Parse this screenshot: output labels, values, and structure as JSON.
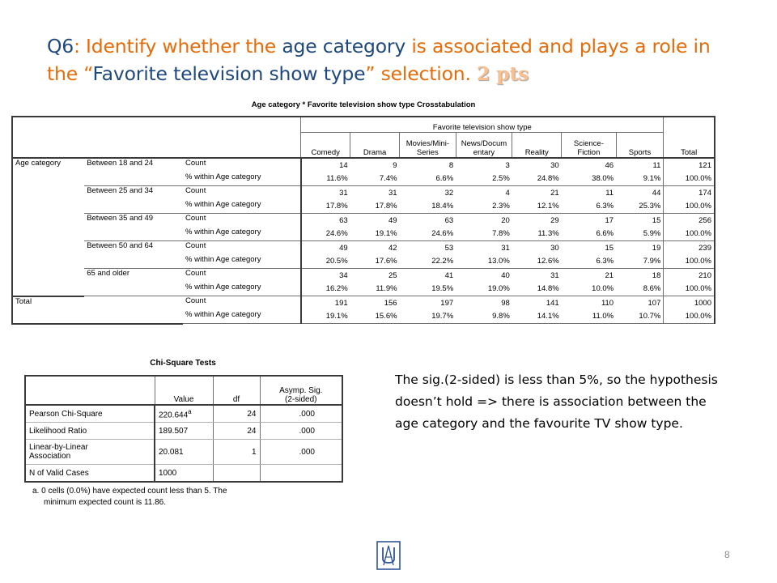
{
  "title": {
    "segments": [
      {
        "text": "Q6",
        "style": "blue"
      },
      {
        "text": ": Identify whether the ",
        "style": "orange"
      },
      {
        "text": "age category",
        "style": "blue"
      },
      {
        "text": " is associated and plays a role in the “",
        "style": "orange"
      },
      {
        "text": "Favorite television show type",
        "style": "blue"
      },
      {
        "text": "” selection. ",
        "style": "orange"
      },
      {
        "text": "2 pts",
        "style": "pts"
      }
    ]
  },
  "crosstab": {
    "caption": "Age category * Favorite television show type Crosstabulation",
    "group_header": "Favorite television show type",
    "columns": [
      "Comedy",
      "Drama",
      "Movies/Mini-\nSeries",
      "News/Docum\nentary",
      "Reality",
      "Science-\nFiction",
      "Sports"
    ],
    "total_label": "Total",
    "row_variable": "Age category",
    "groups": [
      {
        "label": "Between 18 and 24",
        "count": [
          "14",
          "9",
          "8",
          "3",
          "30",
          "46",
          "11",
          "121"
        ],
        "pct": [
          "11.6%",
          "7.4%",
          "6.6%",
          "2.5%",
          "24.8%",
          "38.0%",
          "9.1%",
          "100.0%"
        ]
      },
      {
        "label": "Between 25 and 34",
        "count": [
          "31",
          "31",
          "32",
          "4",
          "21",
          "11",
          "44",
          "174"
        ],
        "pct": [
          "17.8%",
          "17.8%",
          "18.4%",
          "2.3%",
          "12.1%",
          "6.3%",
          "25.3%",
          "100.0%"
        ]
      },
      {
        "label": "Between 35 and 49",
        "count": [
          "63",
          "49",
          "63",
          "20",
          "29",
          "17",
          "15",
          "256"
        ],
        "pct": [
          "24.6%",
          "19.1%",
          "24.6%",
          "7.8%",
          "11.3%",
          "6.6%",
          "5.9%",
          "100.0%"
        ]
      },
      {
        "label": "Between 50 and 64",
        "count": [
          "49",
          "42",
          "53",
          "31",
          "30",
          "15",
          "19",
          "239"
        ],
        "pct": [
          "20.5%",
          "17.6%",
          "22.2%",
          "13.0%",
          "12.6%",
          "6.3%",
          "7.9%",
          "100.0%"
        ]
      },
      {
        "label": "65 and older",
        "count": [
          "34",
          "25",
          "41",
          "40",
          "31",
          "21",
          "18",
          "210"
        ],
        "pct": [
          "16.2%",
          "11.9%",
          "19.5%",
          "19.0%",
          "14.8%",
          "10.0%",
          "8.6%",
          "100.0%"
        ]
      }
    ],
    "total_row": {
      "label": "Total",
      "count": [
        "191",
        "156",
        "197",
        "98",
        "141",
        "110",
        "107",
        "1000"
      ],
      "pct": [
        "19.1%",
        "15.6%",
        "19.7%",
        "9.8%",
        "14.1%",
        "11.0%",
        "10.7%",
        "100.0%"
      ]
    },
    "stat_count_label": "Count",
    "stat_pct_label": "% within Age category"
  },
  "chi_square": {
    "caption": "Chi-Square Tests",
    "headers": {
      "value": "Value",
      "df": "df",
      "sig": "Asymp. Sig.\n(2-sided)"
    },
    "rows": [
      {
        "label": "Pearson Chi-Square",
        "value": "220.644",
        "sup": "a",
        "df": "24",
        "sig": ".000"
      },
      {
        "label": "Likelihood Ratio",
        "value": "189.507",
        "sup": "",
        "df": "24",
        "sig": ".000"
      },
      {
        "label": "Linear-by-Linear\nAssociation",
        "value": "20.081",
        "sup": "",
        "df": "1",
        "sig": ".000"
      },
      {
        "label": "N of Valid Cases",
        "value": "1000",
        "sup": "",
        "df": "",
        "sig": ""
      }
    ],
    "note_line1": "a. 0 cells (0.0%) have expected count less than 5. The",
    "note_line2": "minimum expected count is 11.86."
  },
  "answer": "The sig.(2-sided) is less than 5%, so the hypothesis doesn’t hold => there is association between the age category and the favourite TV show type.",
  "page_number": "8",
  "logo_icon": "university-logo-icon",
  "colors": {
    "title_orange": "#E46C0A",
    "title_blue": "#1F497D",
    "pts": "#FAC090",
    "logo_blue": "#2E5597"
  }
}
